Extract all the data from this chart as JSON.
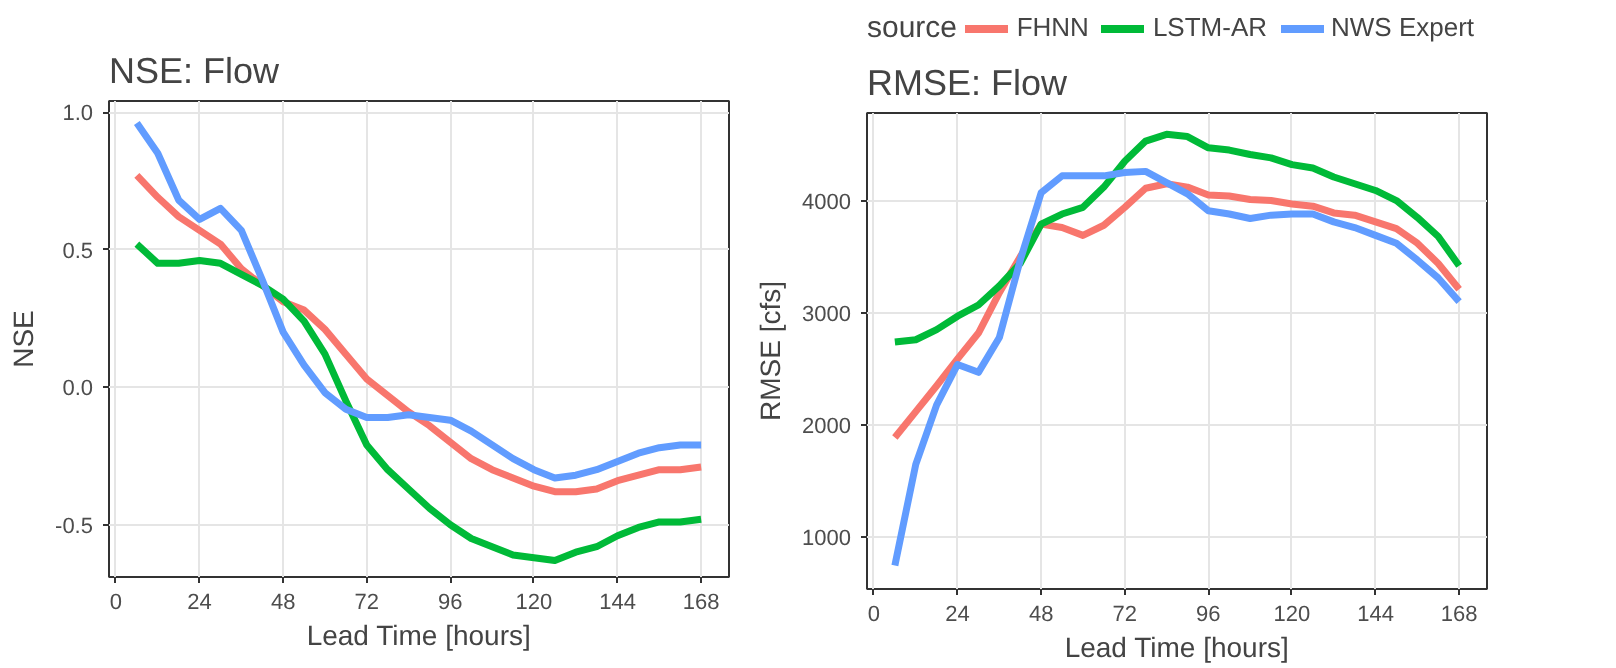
{
  "chart_data": [
    {
      "type": "line",
      "title": "NSE: Flow",
      "xlabel": "Lead Time [hours]",
      "ylabel": "NSE",
      "x": [
        6,
        12,
        18,
        24,
        30,
        36,
        42,
        48,
        54,
        60,
        66,
        72,
        78,
        84,
        90,
        96,
        102,
        108,
        114,
        120,
        126,
        132,
        138,
        144,
        150,
        156,
        162,
        168
      ],
      "series": [
        {
          "color": "#f8766d",
          "values": [
            0.77,
            0.69,
            0.62,
            0.57,
            0.52,
            0.43,
            0.37,
            0.31,
            0.28,
            0.21,
            0.12,
            0.03,
            -0.03,
            -0.09,
            -0.14,
            -0.2,
            -0.26,
            -0.3,
            -0.33,
            -0.36,
            -0.38,
            -0.38,
            -0.37,
            -0.34,
            -0.32,
            -0.3,
            -0.3,
            -0.29
          ]
        },
        {
          "color": "#00ba38",
          "values": [
            0.52,
            0.45,
            0.45,
            0.46,
            0.45,
            0.41,
            0.37,
            0.32,
            0.24,
            0.12,
            -0.05,
            -0.21,
            -0.3,
            -0.37,
            -0.44,
            -0.5,
            -0.55,
            -0.58,
            -0.61,
            -0.62,
            -0.63,
            -0.6,
            -0.58,
            -0.54,
            -0.51,
            -0.49,
            -0.49,
            -0.48
          ]
        },
        {
          "color": "#619cff",
          "values": [
            0.96,
            0.85,
            0.68,
            0.61,
            0.65,
            0.57,
            0.39,
            0.2,
            0.08,
            -0.02,
            -0.08,
            -0.11,
            -0.11,
            -0.1,
            -0.11,
            -0.12,
            -0.16,
            -0.21,
            -0.26,
            -0.3,
            -0.33,
            -0.32,
            -0.3,
            -0.27,
            -0.24,
            -0.22,
            -0.21,
            -0.21
          ]
        }
      ],
      "xlim": [
        -2,
        176
      ],
      "xticks": [
        0,
        24,
        48,
        72,
        96,
        120,
        144,
        168
      ],
      "ylim": [
        -0.69,
        1.04
      ],
      "yticks": [
        {
          "value": -0.5,
          "label": "-0.5"
        },
        {
          "value": 0,
          "label": "0.0"
        },
        {
          "value": 0.5,
          "label": "0.5"
        },
        {
          "value": 1,
          "label": "1.0"
        }
      ],
      "grid": true
    },
    {
      "type": "line",
      "title": "RMSE: Flow",
      "xlabel": "Lead Time [hours]",
      "ylabel": "RMSE [cfs]",
      "legend_title": "source",
      "legend": "top",
      "x": [
        6,
        12,
        18,
        24,
        30,
        36,
        42,
        48,
        54,
        60,
        66,
        72,
        78,
        84,
        90,
        96,
        102,
        108,
        114,
        120,
        126,
        132,
        138,
        144,
        150,
        156,
        162,
        168
      ],
      "series": [
        {
          "name": "FHNN",
          "color": "#f8766d",
          "values": [
            1890,
            2120,
            2350,
            2590,
            2820,
            3180,
            3500,
            3790,
            3760,
            3690,
            3780,
            3940,
            4110,
            4150,
            4120,
            4050,
            4040,
            4010,
            4000,
            3970,
            3950,
            3890,
            3870,
            3810,
            3750,
            3620,
            3440,
            3210
          ]
        },
        {
          "name": "LSTM-AR",
          "color": "#00ba38",
          "values": [
            2740,
            2760,
            2850,
            2970,
            3070,
            3240,
            3440,
            3790,
            3880,
            3940,
            4120,
            4350,
            4530,
            4590,
            4570,
            4470,
            4450,
            4410,
            4380,
            4320,
            4290,
            4210,
            4150,
            4090,
            4000,
            3850,
            3680,
            3420
          ]
        },
        {
          "name": "NWS Expert",
          "color": "#619cff",
          "values": [
            750,
            1650,
            2180,
            2540,
            2470,
            2780,
            3470,
            4070,
            4220,
            4220,
            4220,
            4250,
            4260,
            4160,
            4060,
            3910,
            3880,
            3840,
            3870,
            3880,
            3880,
            3810,
            3760,
            3690,
            3620,
            3470,
            3310,
            3100
          ]
        }
      ],
      "xlim": [
        -2,
        176
      ],
      "xticks": [
        0,
        24,
        48,
        72,
        96,
        120,
        144,
        168
      ],
      "ylim": [
        540,
        4780
      ],
      "yticks": [
        1000,
        2000,
        3000,
        4000
      ],
      "grid": true
    }
  ]
}
